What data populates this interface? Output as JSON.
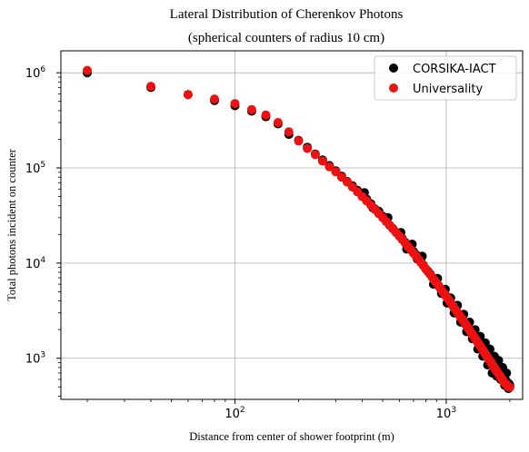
{
  "chart_data": {
    "type": "scatter",
    "title": "Lateral Distribution of Cherenkov Photons",
    "subtitle": "(spherical counters of radius 10 cm)",
    "xlabel": "Distance from center of shower footprint (m)",
    "ylabel": "Total photons incident on counter",
    "xscale": "log",
    "yscale": "log",
    "xlim": [
      15,
      2300
    ],
    "ylim": [
      370,
      1700000
    ],
    "x_ticks": [
      {
        "value": 100,
        "base": "10",
        "exp": "2"
      },
      {
        "value": 1000,
        "base": "10",
        "exp": "3"
      }
    ],
    "y_ticks": [
      {
        "value": 1000,
        "base": "10",
        "exp": "3"
      },
      {
        "value": 10000,
        "base": "10",
        "exp": "4"
      },
      {
        "value": 100000,
        "base": "10",
        "exp": "5"
      },
      {
        "value": 1000000,
        "base": "10",
        "exp": "6"
      }
    ],
    "grid": true,
    "legend": "top-right",
    "series": [
      {
        "name": "CORSIKA-IACT",
        "color": "#000000",
        "points": [
          [
            20,
            1000000
          ],
          [
            40,
            700000
          ],
          [
            60,
            590000
          ],
          [
            80,
            510000
          ],
          [
            100,
            450000
          ],
          [
            120,
            395000
          ],
          [
            140,
            345000
          ],
          [
            160,
            290000
          ],
          [
            180,
            225000
          ],
          [
            200,
            195000
          ],
          [
            220,
            165000
          ],
          [
            240,
            140000
          ],
          [
            260,
            121000
          ],
          [
            280,
            106000
          ],
          [
            300,
            93000
          ],
          [
            320,
            82000
          ],
          [
            340,
            72000
          ],
          [
            360,
            65000
          ],
          [
            380,
            58000
          ],
          [
            400,
            52000
          ],
          [
            420,
            47000
          ],
          [
            440,
            42000
          ],
          [
            460,
            37000
          ],
          [
            480,
            35000
          ],
          [
            500,
            31000
          ],
          [
            520,
            28500
          ],
          [
            540,
            25000
          ],
          [
            560,
            23000
          ],
          [
            580,
            21000
          ],
          [
            600,
            19500
          ],
          [
            620,
            18000
          ],
          [
            640,
            16500
          ],
          [
            660,
            15500
          ],
          [
            680,
            14500
          ],
          [
            700,
            13200
          ],
          [
            720,
            12200
          ],
          [
            740,
            11200
          ],
          [
            760,
            10300
          ],
          [
            780,
            9500
          ],
          [
            800,
            8700
          ],
          [
            820,
            8200
          ],
          [
            840,
            7700
          ],
          [
            860,
            7100
          ],
          [
            880,
            6600
          ],
          [
            900,
            6200
          ],
          [
            920,
            5800
          ],
          [
            940,
            5400
          ],
          [
            960,
            5100
          ],
          [
            980,
            4800
          ],
          [
            1000,
            4500
          ],
          [
            1020,
            4100
          ],
          [
            1040,
            4000
          ],
          [
            1060,
            3700
          ],
          [
            1080,
            3500
          ],
          [
            1100,
            3300
          ],
          [
            1120,
            3100
          ],
          [
            1140,
            2950
          ],
          [
            1160,
            2800
          ],
          [
            1180,
            2650
          ],
          [
            1200,
            2500
          ],
          [
            1220,
            2350
          ],
          [
            1240,
            2250
          ],
          [
            1260,
            2150
          ],
          [
            1280,
            2050
          ],
          [
            1300,
            1950
          ],
          [
            1320,
            1850
          ],
          [
            1340,
            1750
          ],
          [
            1360,
            1700
          ],
          [
            1380,
            1600
          ],
          [
            1400,
            1550
          ],
          [
            1420,
            1480
          ],
          [
            1440,
            1400
          ],
          [
            1460,
            1350
          ],
          [
            1480,
            1300
          ],
          [
            1500,
            1250
          ],
          [
            1520,
            1190
          ],
          [
            1540,
            1130
          ],
          [
            1560,
            1090
          ],
          [
            1580,
            1050
          ],
          [
            1600,
            1000
          ],
          [
            1620,
            970
          ],
          [
            1640,
            930
          ],
          [
            1660,
            900
          ],
          [
            1680,
            870
          ],
          [
            1700,
            840
          ],
          [
            1720,
            800
          ],
          [
            1740,
            780
          ],
          [
            1760,
            750
          ],
          [
            1780,
            720
          ],
          [
            1800,
            700
          ],
          [
            1820,
            680
          ],
          [
            1840,
            650
          ],
          [
            1860,
            640
          ],
          [
            1880,
            620
          ],
          [
            1900,
            600
          ],
          [
            1920,
            580
          ],
          [
            1940,
            560
          ],
          [
            1960,
            550
          ],
          [
            1980,
            540
          ],
          [
            2000,
            520
          ],
          [
            410,
            55000
          ],
          [
            450,
            38000
          ],
          [
            530,
            30000
          ],
          [
            610,
            21000
          ],
          [
            650,
            14000
          ],
          [
            690,
            15800
          ],
          [
            730,
            11000
          ],
          [
            770,
            11800
          ],
          [
            870,
            6000
          ],
          [
            910,
            6900
          ],
          [
            950,
            4800
          ],
          [
            990,
            5300
          ],
          [
            1010,
            3800
          ],
          [
            1050,
            4300
          ],
          [
            1090,
            3000
          ],
          [
            1130,
            3600
          ],
          [
            1170,
            2400
          ],
          [
            1210,
            2900
          ],
          [
            1250,
            1900
          ],
          [
            1290,
            2400
          ],
          [
            1330,
            1600
          ],
          [
            1370,
            2000
          ],
          [
            1410,
            1250
          ],
          [
            1450,
            1700
          ],
          [
            1490,
            1050
          ],
          [
            1530,
            1450
          ],
          [
            1570,
            850
          ],
          [
            1610,
            1250
          ],
          [
            1650,
            700
          ],
          [
            1690,
            1050
          ],
          [
            1730,
            650
          ],
          [
            1770,
            950
          ],
          [
            1810,
            600
          ],
          [
            1850,
            800
          ],
          [
            1890,
            520
          ],
          [
            1930,
            700
          ],
          [
            1970,
            480
          ]
        ]
      },
      {
        "name": "Universality",
        "color": "#ee1111",
        "points": [
          [
            20,
            1060000
          ],
          [
            40,
            720000
          ],
          [
            60,
            590000
          ],
          [
            80,
            530000
          ],
          [
            100,
            475000
          ],
          [
            120,
            410000
          ],
          [
            140,
            360000
          ],
          [
            160,
            300000
          ],
          [
            180,
            240000
          ],
          [
            200,
            192000
          ],
          [
            220,
            160000
          ],
          [
            240,
            138000
          ],
          [
            260,
            118000
          ],
          [
            280,
            103000
          ],
          [
            300,
            91000
          ],
          [
            320,
            80000
          ],
          [
            340,
            71000
          ],
          [
            360,
            63000
          ],
          [
            380,
            56000
          ],
          [
            400,
            50000
          ],
          [
            420,
            45000
          ],
          [
            440,
            40500
          ],
          [
            460,
            36500
          ],
          [
            480,
            33000
          ],
          [
            500,
            30000
          ],
          [
            520,
            27300
          ],
          [
            540,
            24900
          ],
          [
            560,
            22800
          ],
          [
            580,
            20900
          ],
          [
            600,
            19200
          ],
          [
            620,
            17600
          ],
          [
            640,
            16200
          ],
          [
            660,
            14900
          ],
          [
            680,
            13800
          ],
          [
            700,
            12700
          ],
          [
            720,
            11800
          ],
          [
            740,
            10900
          ],
          [
            760,
            10100
          ],
          [
            780,
            9400
          ],
          [
            800,
            8700
          ],
          [
            820,
            8100
          ],
          [
            840,
            7600
          ],
          [
            860,
            7050
          ],
          [
            880,
            6600
          ],
          [
            900,
            6150
          ],
          [
            920,
            5750
          ],
          [
            940,
            5400
          ],
          [
            960,
            5050
          ],
          [
            980,
            4750
          ],
          [
            1000,
            4450
          ],
          [
            1020,
            4200
          ],
          [
            1040,
            3950
          ],
          [
            1060,
            3700
          ],
          [
            1080,
            3500
          ],
          [
            1100,
            3300
          ],
          [
            1120,
            3100
          ],
          [
            1140,
            2950
          ],
          [
            1160,
            2780
          ],
          [
            1180,
            2640
          ],
          [
            1200,
            2500
          ],
          [
            1220,
            2370
          ],
          [
            1240,
            2250
          ],
          [
            1260,
            2130
          ],
          [
            1280,
            2020
          ],
          [
            1300,
            1920
          ],
          [
            1320,
            1830
          ],
          [
            1340,
            1740
          ],
          [
            1360,
            1660
          ],
          [
            1380,
            1580
          ],
          [
            1400,
            1500
          ],
          [
            1420,
            1430
          ],
          [
            1440,
            1370
          ],
          [
            1460,
            1310
          ],
          [
            1480,
            1250
          ],
          [
            1500,
            1190
          ],
          [
            1520,
            1140
          ],
          [
            1540,
            1090
          ],
          [
            1560,
            1040
          ],
          [
            1580,
            1000
          ],
          [
            1600,
            960
          ],
          [
            1620,
            920
          ],
          [
            1640,
            880
          ],
          [
            1660,
            845
          ],
          [
            1680,
            810
          ],
          [
            1700,
            780
          ],
          [
            1720,
            750
          ],
          [
            1740,
            720
          ],
          [
            1760,
            695
          ],
          [
            1780,
            670
          ],
          [
            1800,
            645
          ],
          [
            1820,
            620
          ],
          [
            1840,
            600
          ],
          [
            1860,
            580
          ],
          [
            1880,
            560
          ],
          [
            1900,
            545
          ],
          [
            1920,
            530
          ],
          [
            1940,
            515
          ],
          [
            1960,
            505
          ],
          [
            1980,
            500
          ],
          [
            2000,
            495
          ]
        ]
      }
    ]
  }
}
